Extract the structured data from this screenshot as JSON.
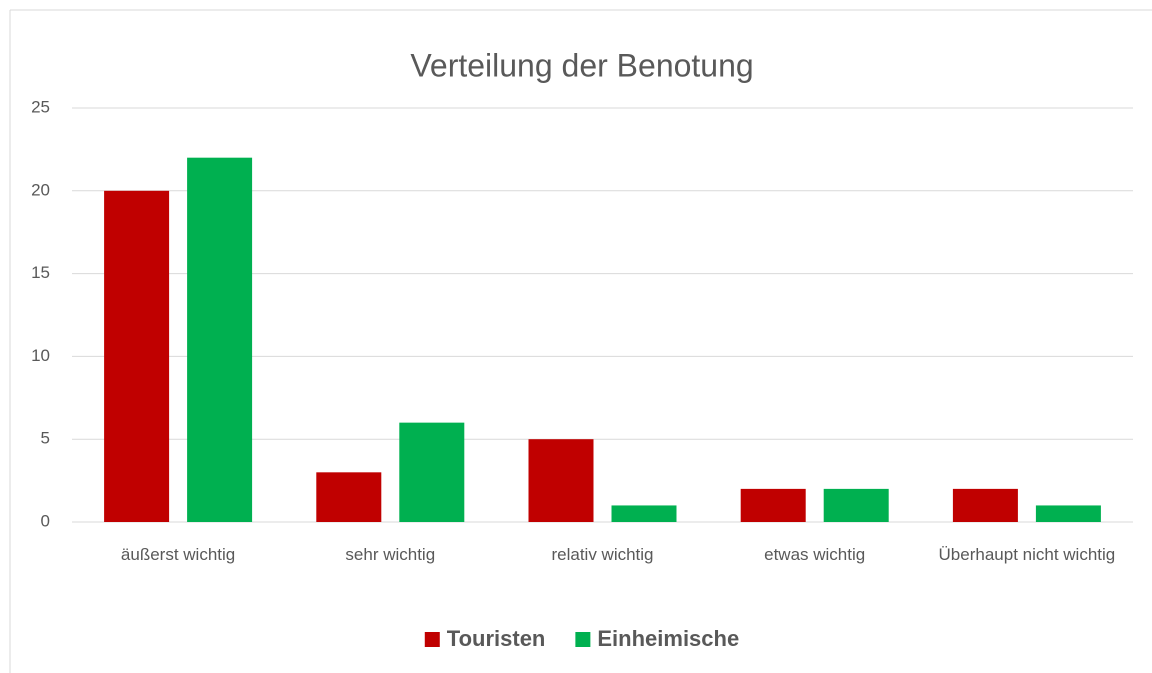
{
  "chart_data": {
    "type": "bar",
    "title": "Verteilung der Benotung",
    "categories": [
      "äußerst wichtig",
      "sehr wichtig",
      "relativ wichtig",
      "etwas wichtig",
      "Überhaupt nicht wichtig"
    ],
    "series": [
      {
        "name": "Touristen",
        "color": "#c00000",
        "values": [
          20,
          3,
          5,
          2,
          2
        ]
      },
      {
        "name": "Einheimische",
        "color": "#00b050",
        "values": [
          22,
          6,
          1,
          2,
          1
        ]
      }
    ],
    "ylim": [
      0,
      25
    ],
    "yticks": [
      0,
      5,
      10,
      15,
      20,
      25
    ],
    "grid": true,
    "legend": "bottom"
  }
}
